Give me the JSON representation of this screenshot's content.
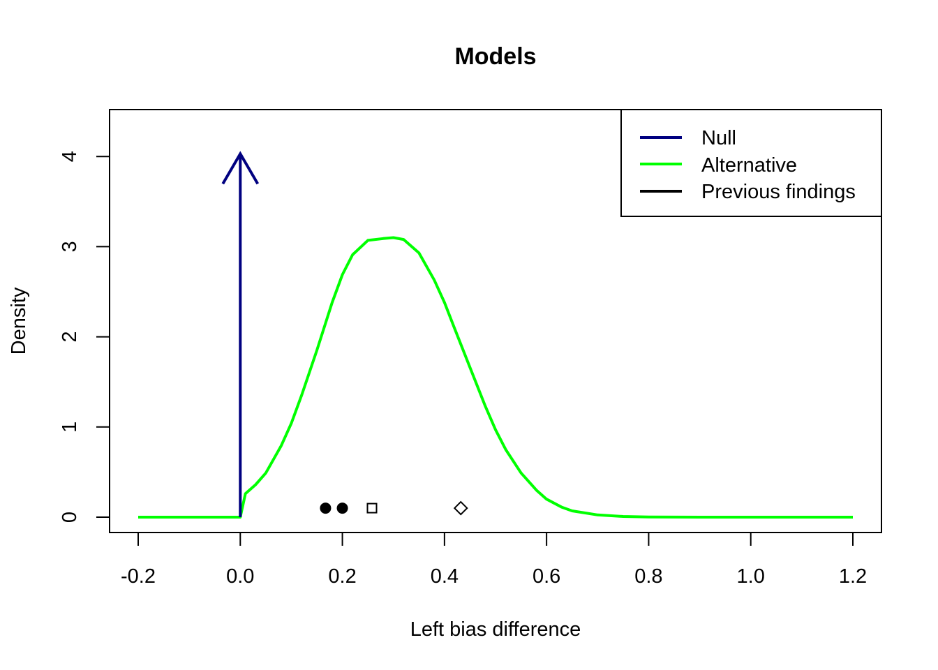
{
  "chart_data": {
    "type": "line",
    "title": "Models",
    "xlabel": "Left bias difference",
    "ylabel": "Density",
    "xlim": [
      -0.2,
      1.2
    ],
    "ylim": [
      0,
      4.5
    ],
    "xticks": [
      "-0.2",
      "0.0",
      "0.2",
      "0.4",
      "0.6",
      "0.8",
      "1.0",
      "1.2"
    ],
    "yticks": [
      "0",
      "1",
      "2",
      "3",
      "4"
    ],
    "grid": false,
    "legend_position": "top-right",
    "series": [
      {
        "name": "Null",
        "kind": "point-mass-arrow",
        "x": 0,
        "arrow_height": 4.03,
        "color": "#000080"
      },
      {
        "name": "Alternative",
        "kind": "density-curve",
        "color": "#00FF00",
        "x": [
          -0.2,
          0.0,
          0.01,
          0.03,
          0.05,
          0.08,
          0.1,
          0.12,
          0.15,
          0.18,
          0.2,
          0.22,
          0.25,
          0.28,
          0.3,
          0.32,
          0.35,
          0.38,
          0.4,
          0.42,
          0.45,
          0.48,
          0.5,
          0.52,
          0.55,
          0.58,
          0.6,
          0.63,
          0.65,
          0.7,
          0.75,
          0.8,
          0.9,
          1.0,
          1.2
        ],
        "y": [
          0,
          0,
          0.26,
          0.36,
          0.49,
          0.79,
          1.04,
          1.35,
          1.85,
          2.38,
          2.69,
          2.91,
          3.07,
          3.09,
          3.1,
          3.08,
          2.93,
          2.63,
          2.38,
          2.09,
          1.66,
          1.23,
          0.97,
          0.75,
          0.49,
          0.3,
          0.2,
          0.11,
          0.07,
          0.025,
          0.008,
          0.002,
          0,
          0,
          0
        ]
      },
      {
        "name": "Previous findings",
        "kind": "points",
        "color": "#000000",
        "points": [
          {
            "x": 0.167,
            "y": 0.1,
            "shape": "filled-circle"
          },
          {
            "x": 0.2,
            "y": 0.1,
            "shape": "filled-circle"
          },
          {
            "x": 0.258,
            "y": 0.1,
            "shape": "open-square"
          },
          {
            "x": 0.432,
            "y": 0.1,
            "shape": "open-diamond"
          }
        ]
      }
    ]
  }
}
